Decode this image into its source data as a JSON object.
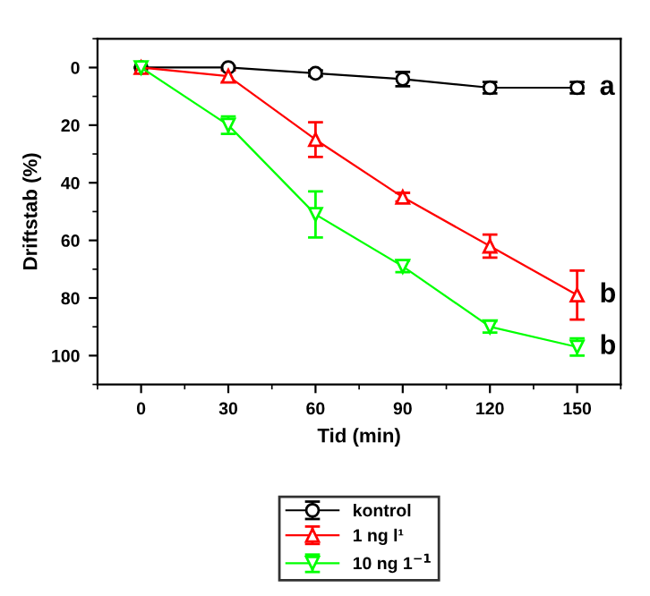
{
  "chart_data": {
    "type": "line",
    "xlabel": "Tid (min)",
    "ylabel": "Driftstab (%)",
    "x": [
      0,
      30,
      60,
      90,
      120,
      150
    ],
    "series": [
      {
        "name": "kontrol",
        "color": "#000000",
        "values": [
          0,
          0,
          2,
          4,
          7,
          7
        ],
        "errors": [
          0,
          0.5,
          1,
          2.5,
          2,
          2
        ],
        "marker": "circle"
      },
      {
        "name": "1 ng l¹",
        "color": "#ff0000",
        "values": [
          0,
          3,
          25,
          45,
          62,
          79
        ],
        "errors": [
          0,
          2,
          6,
          1.5,
          4,
          8.5
        ],
        "marker": "triangle"
      },
      {
        "name": "10 ng 1$^{−1}$",
        "color": "#00ff00",
        "values": [
          0,
          20,
          51,
          69,
          90,
          97
        ],
        "errors": [
          0,
          3,
          8,
          2,
          2,
          3
        ],
        "marker": "triangle_down"
      }
    ],
    "xlim": [
      -15,
      165
    ],
    "xticks": [
      0,
      30,
      60,
      90,
      120,
      150
    ],
    "ylim": [
      110,
      -10
    ],
    "yticks": [
      0,
      20,
      40,
      60,
      80,
      100
    ],
    "annotations": [
      "a",
      "b",
      "b"
    ],
    "legend": "bottom",
    "grid": false
  }
}
